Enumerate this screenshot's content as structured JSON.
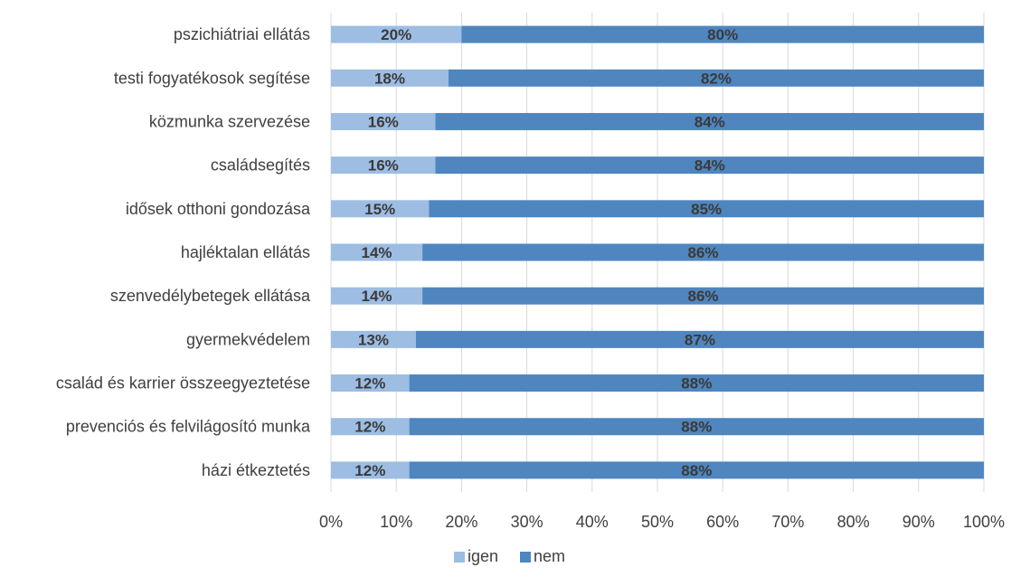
{
  "chart_data": {
    "type": "bar",
    "orientation": "horizontal",
    "stacked": true,
    "normalized": true,
    "categories": [
      "pszichiátriai ellátás",
      "testi fogyatékosok segítése",
      "közmunka szervezése",
      "családsegítés",
      "idősek otthoni gondozása",
      "hajléktalan ellátás",
      "szenvedélybetegek ellátása",
      "gyermekvédelem",
      "család és karrier összeegyeztetése",
      "prevenciós és felvilágosító munka",
      "házi étkeztetés"
    ],
    "series": [
      {
        "name": "igen",
        "color": "#9dbde3",
        "values": [
          20,
          18,
          16,
          16,
          15,
          14,
          14,
          13,
          12,
          12,
          12
        ]
      },
      {
        "name": "nem",
        "color": "#4f86bf",
        "values": [
          80,
          82,
          84,
          84,
          85,
          86,
          86,
          87,
          88,
          88,
          88
        ]
      }
    ],
    "value_labels": [
      [
        "20%",
        "18%",
        "16%",
        "16%",
        "15%",
        "14%",
        "14%",
        "13%",
        "12%",
        "12%",
        "12%"
      ],
      [
        "80%",
        "82%",
        "84%",
        "84%",
        "85%",
        "86%",
        "86%",
        "87%",
        "88%",
        "88%",
        "88%"
      ]
    ],
    "xlim": [
      0,
      100
    ],
    "x_ticks": [
      "0%",
      "10%",
      "20%",
      "30%",
      "40%",
      "50%",
      "60%",
      "70%",
      "80%",
      "90%",
      "100%"
    ],
    "grid": true,
    "legend": {
      "position": "bottom",
      "entries": [
        "igen",
        "nem"
      ]
    }
  }
}
